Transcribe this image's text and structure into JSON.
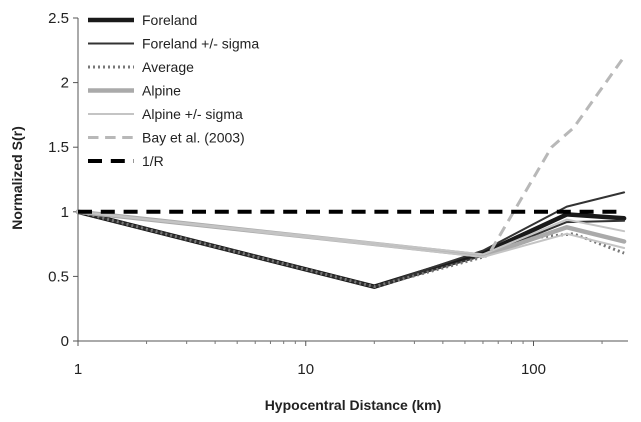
{
  "chart_data": {
    "type": "line",
    "title": "",
    "xlabel": "Hypocentral Distance (km)",
    "ylabel": "Normalized S(r)",
    "xscale": "log",
    "xlim": [
      1,
      260
    ],
    "ylim": [
      0,
      2.5
    ],
    "x_ticks": [
      1,
      10,
      100
    ],
    "x_tick_labels": [
      "1",
      "10",
      "100"
    ],
    "y_ticks": [
      0,
      0.5,
      1,
      1.5,
      2,
      2.5
    ],
    "y_tick_labels": [
      "0",
      "0.5",
      "1",
      "1.5",
      "2",
      "2.5"
    ],
    "grid": false,
    "legend_position": "top-left",
    "series": [
      {
        "name": "Foreland",
        "color": "#1a1a1a",
        "style": "solid",
        "width": 4.5,
        "x": [
          1,
          20,
          60,
          140,
          250
        ],
        "y": [
          1.0,
          0.42,
          0.68,
          0.98,
          0.95
        ]
      },
      {
        "name": "Foreland +/- sigma",
        "color": "#333333",
        "style": "solid",
        "width": 2,
        "x": [
          1,
          20,
          60,
          140,
          250
        ],
        "y": [
          1.0,
          0.42,
          0.7,
          1.04,
          1.15
        ]
      },
      {
        "name": "Foreland +/- sigma",
        "color": "#333333",
        "style": "solid",
        "width": 2,
        "x": [
          1,
          20,
          60,
          140,
          250
        ],
        "y": [
          1.0,
          0.42,
          0.66,
          0.92,
          0.93
        ]
      },
      {
        "name": "Average",
        "color": "#777777",
        "style": "dotted",
        "width": 3,
        "x": [
          1,
          20,
          60,
          100,
          150,
          250
        ],
        "y": [
          1.0,
          0.42,
          0.65,
          0.8,
          0.83,
          0.68
        ]
      },
      {
        "name": "Alpine",
        "color": "#aaaaaa",
        "style": "solid",
        "width": 4.5,
        "x": [
          1,
          60,
          140,
          250
        ],
        "y": [
          1.0,
          0.66,
          0.88,
          0.77
        ]
      },
      {
        "name": "Alpine +/- sigma",
        "color": "#c4c4c4",
        "style": "solid",
        "width": 2,
        "x": [
          1,
          60,
          140,
          250
        ],
        "y": [
          1.0,
          0.67,
          0.94,
          0.85
        ]
      },
      {
        "name": "Alpine +/- sigma",
        "color": "#c4c4c4",
        "style": "solid",
        "width": 2,
        "x": [
          1,
          60,
          140,
          250
        ],
        "y": [
          1.0,
          0.65,
          0.83,
          0.72
        ]
      },
      {
        "name": "Bay et al. (2003)",
        "color": "#b8b8b8",
        "style": "dashed",
        "width": 3,
        "x": [
          65,
          120,
          150,
          250
        ],
        "y": [
          0.7,
          1.5,
          1.65,
          2.2
        ]
      },
      {
        "name": "1/R",
        "color": "#000000",
        "style": "dashed",
        "width": 4,
        "x": [
          1,
          250
        ],
        "y": [
          1.0,
          1.0
        ]
      }
    ],
    "legend": [
      {
        "label": "Foreland",
        "color": "#1a1a1a",
        "style": "solid",
        "width": 4.5
      },
      {
        "label": "Foreland +/- sigma",
        "color": "#333333",
        "style": "solid",
        "width": 2
      },
      {
        "label": "Average",
        "color": "#777777",
        "style": "dotted",
        "width": 3
      },
      {
        "label": "Alpine",
        "color": "#aaaaaa",
        "style": "solid",
        "width": 4.5
      },
      {
        "label": "Alpine +/- sigma",
        "color": "#c4c4c4",
        "style": "solid",
        "width": 2
      },
      {
        "label": "Bay et al. (2003)",
        "color": "#b8b8b8",
        "style": "dashed",
        "width": 3
      },
      {
        "label": "1/R",
        "color": "#000000",
        "style": "dashed",
        "width": 4
      }
    ]
  }
}
